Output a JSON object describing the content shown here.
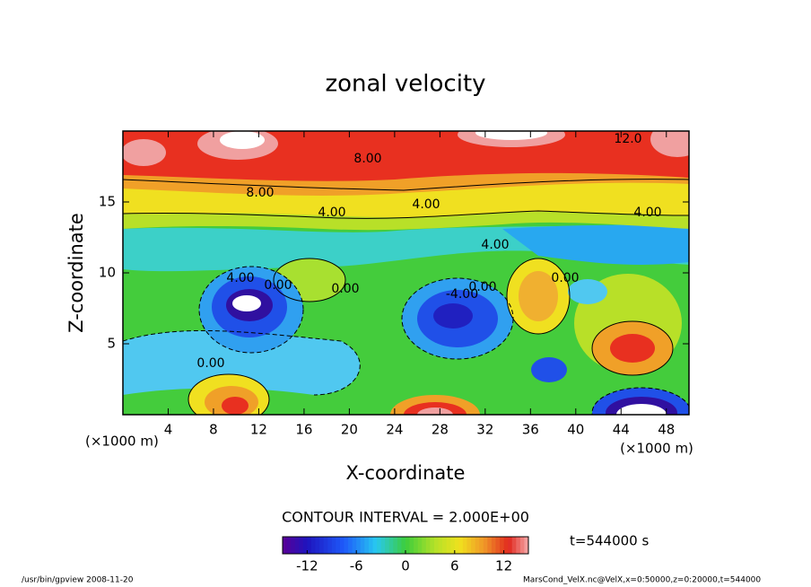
{
  "chart_data": {
    "type": "contour",
    "title": "zonal velocity",
    "xlabel": "X-coordinate",
    "ylabel": "Z-coordinate",
    "x_unit_label": "(×1000 m)",
    "xlim": [
      0,
      50
    ],
    "xticks": [
      4,
      8,
      12,
      16,
      20,
      24,
      28,
      32,
      36,
      40,
      44,
      48
    ],
    "ylim": [
      0,
      20
    ],
    "yticks": [
      5,
      10,
      15
    ],
    "contour_labels": [
      "12.0",
      "8.00",
      "8.00",
      "4.00",
      "4.00",
      "4.00",
      "4.00",
      "4.00",
      "0.00",
      "0.00",
      "-4.00",
      "0.00",
      "0.00",
      "0.00"
    ],
    "contour_interval": "CONTOUR INTERVAL = 2.000E+00",
    "time_label": "t=544000 s",
    "colorbar": {
      "lim": [
        -15,
        15
      ],
      "ticks": [
        -12,
        -6,
        0,
        6,
        12
      ]
    },
    "footer_left": "/usr/bin/gpview   2008-11-20",
    "footer_right": "MarsCond_VelX.nc@VelX,x=0:50000,z=0:20000,t=544000"
  }
}
